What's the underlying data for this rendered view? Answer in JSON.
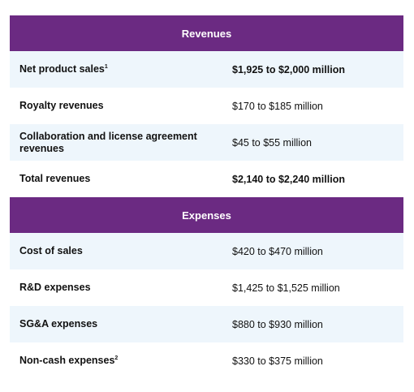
{
  "revenues": {
    "header": "Revenues",
    "rows": [
      {
        "label": "Net product sales",
        "footnote": "1",
        "value": "$1,925 to $2,000 million"
      },
      {
        "label": "Royalty revenues",
        "value": "$170 to $185 million"
      },
      {
        "label": "Collaboration and license agreement revenues",
        "value": "$45 to $55 million"
      },
      {
        "label": "Total revenues",
        "value": "$2,140 to $2,240 million"
      }
    ]
  },
  "expenses": {
    "header": "Expenses",
    "rows": [
      {
        "label": "Cost of sales",
        "value": "$420 to $470 million"
      },
      {
        "label": "R&D expenses",
        "value": "$1,425 to $1,525 million"
      },
      {
        "label": "SG&A expenses",
        "value": "$880 to $930 million"
      },
      {
        "label": "Non-cash expenses",
        "footnote": "2",
        "value": "$330 to $375 million"
      }
    ]
  },
  "colors": {
    "header_bg": "#6b2a82",
    "alt_row_bg": "#eef6fc"
  }
}
